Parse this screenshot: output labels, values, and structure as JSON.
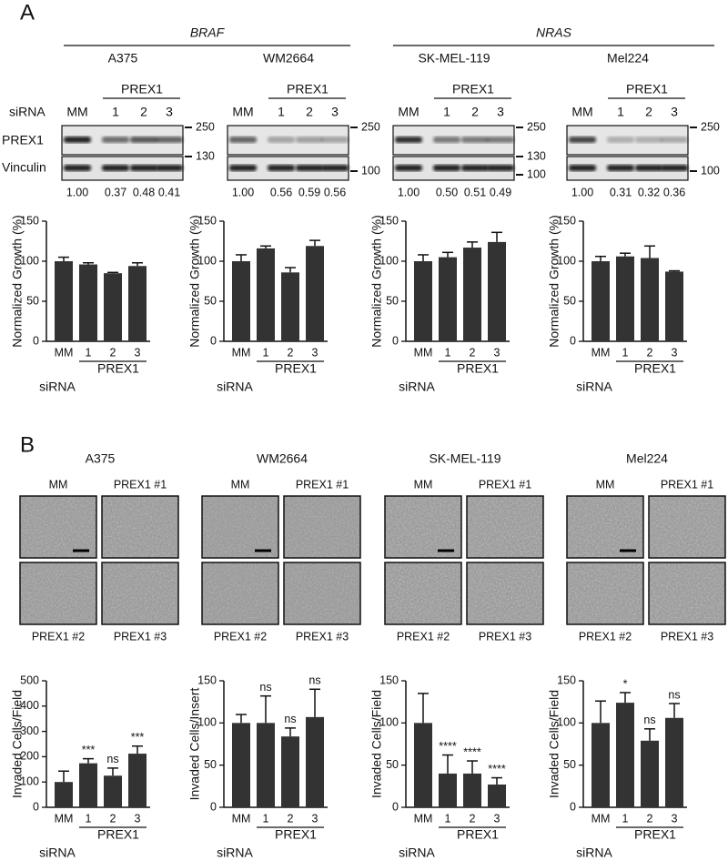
{
  "panel_a": {
    "label": "A",
    "sirna_label": "siRNA",
    "row_labels": [
      "PREX1",
      "Vinculin"
    ],
    "groups": [
      "BRAF",
      "NRAS"
    ],
    "blots": [
      {
        "cell_line": "A375",
        "group_label": "PREX1",
        "lanes": [
          "MM",
          "1",
          "2",
          "3"
        ],
        "markers": [
          "250",
          "130"
        ],
        "quantification": [
          "1.00",
          "0.37",
          "0.48",
          "0.41"
        ]
      },
      {
        "cell_line": "WM2664",
        "group_label": "PREX1",
        "lanes": [
          "MM",
          "1",
          "2",
          "3"
        ],
        "markers": [
          "250",
          "100"
        ],
        "quantification": [
          "1.00",
          "0.56",
          "0.59",
          "0.56"
        ]
      },
      {
        "cell_line": "SK-MEL-119",
        "group_label": "PREX1",
        "lanes": [
          "MM",
          "1",
          "2",
          "3"
        ],
        "markers": [
          "250",
          "130",
          "100"
        ],
        "quantification": [
          "1.00",
          "0.50",
          "0.51",
          "0.49"
        ]
      },
      {
        "cell_line": "Mel224",
        "group_label": "PREX1",
        "lanes": [
          "MM",
          "1",
          "2",
          "3"
        ],
        "markers": [
          "250",
          "100"
        ],
        "quantification": [
          "1.00",
          "0.31",
          "0.32",
          "0.36"
        ]
      }
    ]
  },
  "panel_b": {
    "label": "B",
    "micrographs": [
      {
        "cell_line": "A375",
        "images": [
          "MM",
          "PREX1  #1",
          "PREX1  #2",
          "PREX1  #3"
        ]
      },
      {
        "cell_line": "WM2664",
        "images": [
          "MM",
          "PREX1  #1",
          "PREX1  #2",
          "PREX1  #3"
        ]
      },
      {
        "cell_line": "SK-MEL-119",
        "images": [
          "MM",
          "PREX1  #1",
          "PREX1  #2",
          "PREX1  #3"
        ]
      },
      {
        "cell_line": "Mel224",
        "images": [
          "MM",
          "PREX1  #1",
          "PREX1  #2",
          "PREX1  #3"
        ]
      }
    ]
  },
  "chart_data": [
    {
      "type": "bar",
      "ylabel": "Normalized Growth (%)",
      "categories": [
        "MM",
        "1",
        "2",
        "3"
      ],
      "group_label": "PREX1",
      "xlabel": "siRNA",
      "values": [
        100,
        96,
        85,
        94
      ],
      "errors": [
        5,
        2,
        1,
        4
      ],
      "color": "#333333",
      "ylim": [
        0,
        150
      ],
      "yticks": [
        0,
        50,
        100,
        150
      ]
    },
    {
      "type": "bar",
      "ylabel": "Normalized Growth (%)",
      "categories": [
        "MM",
        "1",
        "2",
        "3"
      ],
      "group_label": "PREX1",
      "xlabel": "siRNA",
      "values": [
        100,
        116,
        86,
        119
      ],
      "errors": [
        8,
        3,
        6,
        7
      ],
      "color": "#333333",
      "ylim": [
        0,
        150
      ],
      "yticks": [
        0,
        50,
        100,
        150
      ]
    },
    {
      "type": "bar",
      "ylabel": "Normalized Growth (%)",
      "categories": [
        "MM",
        "1",
        "2",
        "3"
      ],
      "group_label": "PREX1",
      "xlabel": "siRNA",
      "values": [
        100,
        105,
        117,
        124
      ],
      "errors": [
        8,
        6,
        7,
        12
      ],
      "color": "#333333",
      "ylim": [
        0,
        150
      ],
      "yticks": [
        0,
        50,
        100,
        150
      ]
    },
    {
      "type": "bar",
      "ylabel": "Normalized Growth (%)",
      "categories": [
        "MM",
        "1",
        "2",
        "3"
      ],
      "group_label": "PREX1",
      "xlabel": "siRNA",
      "values": [
        100,
        106,
        104,
        87
      ],
      "errors": [
        6,
        4,
        15,
        1
      ],
      "color": "#333333",
      "ylim": [
        0,
        150
      ],
      "yticks": [
        0,
        50,
        100,
        150
      ]
    },
    {
      "type": "bar",
      "ylabel": "Invaded Cells/Field",
      "categories": [
        "MM",
        "1",
        "2",
        "3"
      ],
      "group_label": "PREX1",
      "xlabel": "siRNA",
      "values": [
        100,
        174,
        125,
        212
      ],
      "errors": [
        43,
        18,
        30,
        30
      ],
      "annotations": [
        null,
        "***",
        "ns",
        "***"
      ],
      "color": "#333333",
      "ylim": [
        0,
        500
      ],
      "yticks": [
        0,
        100,
        200,
        300,
        400,
        500
      ]
    },
    {
      "type": "bar",
      "ylabel": "Invaded Cells/Insert",
      "categories": [
        "MM",
        "1",
        "2",
        "3"
      ],
      "group_label": "PREX1",
      "xlabel": "siRNA",
      "values": [
        100,
        100,
        84,
        107
      ],
      "errors": [
        10,
        32,
        10,
        33
      ],
      "annotations": [
        null,
        "ns",
        "ns",
        "ns"
      ],
      "color": "#333333",
      "ylim": [
        0,
        150
      ],
      "yticks": [
        0,
        50,
        100,
        150
      ]
    },
    {
      "type": "bar",
      "ylabel": "Invaded Cells/Field",
      "categories": [
        "MM",
        "1",
        "2",
        "3"
      ],
      "group_label": "PREX1",
      "xlabel": "siRNA",
      "values": [
        100,
        40,
        40,
        27
      ],
      "errors": [
        35,
        22,
        15,
        8
      ],
      "annotations": [
        null,
        "****",
        "****",
        "****"
      ],
      "color": "#333333",
      "ylim": [
        0,
        150
      ],
      "yticks": [
        0,
        50,
        100,
        150
      ]
    },
    {
      "type": "bar",
      "ylabel": "Invaded Cells/Field",
      "categories": [
        "MM",
        "1",
        "2",
        "3"
      ],
      "group_label": "PREX1",
      "xlabel": "siRNA",
      "values": [
        100,
        124,
        79,
        106
      ],
      "errors": [
        26,
        12,
        14,
        17
      ],
      "annotations": [
        null,
        "*",
        "ns",
        "ns"
      ],
      "color": "#333333",
      "ylim": [
        0,
        150
      ],
      "yticks": [
        0,
        50,
        100,
        150
      ]
    }
  ]
}
